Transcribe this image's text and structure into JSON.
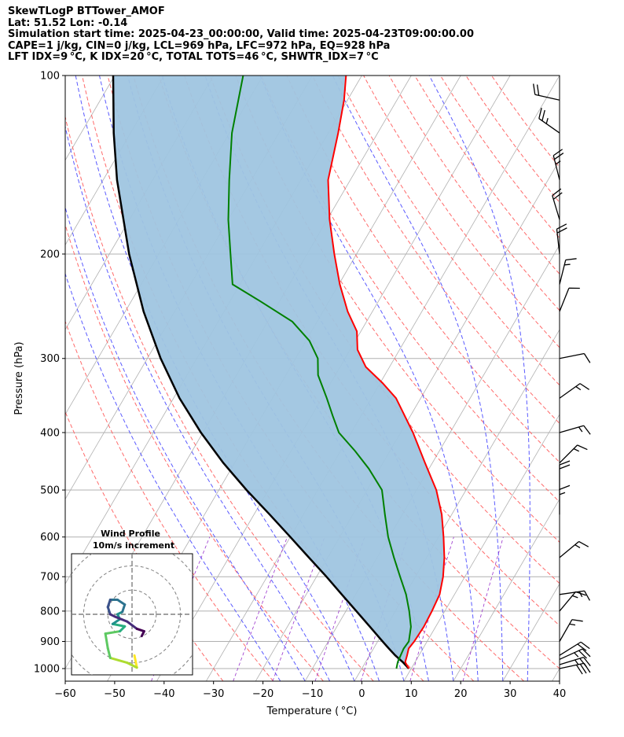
{
  "header": {
    "line1": "SkewTLogP BTTower_AMOF",
    "line2": "Lat: 51.52   Lon: -0.14",
    "line3": "Simulation start time: 2025-04-23_00:00:00, Valid time: 2025-04-23T09:00:00.00",
    "line4": "CAPE=1 j/kg, CIN=0 j/kg, LCL=969 hPa, LFC=972 hPa, EQ=928 hPa",
    "line5": "LFT IDX=9 °C, K IDX=20 °C, TOTAL TOTS=46 °C, SHWTR_IDX=7 °C"
  },
  "chart_data": {
    "type": "skewt",
    "xlabel": "Temperature ( °C)",
    "ylabel": "Pressure (hPa)",
    "xlim": [
      -60,
      40
    ],
    "ylim": [
      1050,
      100
    ],
    "xticks": [
      -60,
      -50,
      -40,
      -30,
      -20,
      -10,
      0,
      10,
      20,
      30,
      40
    ],
    "xtick_labels": [
      "−60",
      "−50",
      "−40",
      "−30",
      "−20",
      "−10",
      "0",
      "10",
      "20",
      "30",
      "40"
    ],
    "yticks": [
      1000,
      900,
      800,
      700,
      600,
      500,
      400,
      300,
      200,
      100
    ],
    "ytick_labels": [
      "1000",
      "900",
      "800",
      "700",
      "600",
      "500",
      "400",
      "300",
      "200",
      "100"
    ],
    "grid": true,
    "temperature": {
      "color": "#ff0000",
      "points": [
        [
          1000,
          9.5
        ],
        [
          975,
          8.0
        ],
        [
          950,
          7.6
        ],
        [
          925,
          7.1
        ],
        [
          900,
          7.4
        ],
        [
          850,
          7.6
        ],
        [
          800,
          7.4
        ],
        [
          750,
          7.0
        ],
        [
          700,
          5.6
        ],
        [
          650,
          3.6
        ],
        [
          600,
          1.0
        ],
        [
          550,
          -2.0
        ],
        [
          500,
          -6.0
        ],
        [
          450,
          -11.5
        ],
        [
          400,
          -17.5
        ],
        [
          350,
          -25.0
        ],
        [
          330,
          -29.5
        ],
        [
          310,
          -34.8
        ],
        [
          290,
          -38.5
        ],
        [
          270,
          -40.8
        ],
        [
          250,
          -45.0
        ],
        [
          225,
          -49.8
        ],
        [
          200,
          -54.5
        ],
        [
          175,
          -59.5
        ],
        [
          150,
          -64.5
        ],
        [
          125,
          -68.0
        ],
        [
          110,
          -70.7
        ],
        [
          100,
          -73.2
        ]
      ]
    },
    "dewpoint": {
      "color": "#008000",
      "points": [
        [
          1000,
          7.0
        ],
        [
          975,
          6.5
        ],
        [
          950,
          6.3
        ],
        [
          925,
          6.1
        ],
        [
          900,
          6.3
        ],
        [
          850,
          5.0
        ],
        [
          800,
          2.8
        ],
        [
          750,
          0.2
        ],
        [
          700,
          -3.1
        ],
        [
          650,
          -6.6
        ],
        [
          600,
          -10.2
        ],
        [
          550,
          -13.5
        ],
        [
          500,
          -17.0
        ],
        [
          460,
          -22.2
        ],
        [
          430,
          -27.0
        ],
        [
          400,
          -32.5
        ],
        [
          375,
          -35.7
        ],
        [
          350,
          -39.0
        ],
        [
          320,
          -43.5
        ],
        [
          300,
          -45.5
        ],
        [
          280,
          -49.3
        ],
        [
          260,
          -55.0
        ],
        [
          240,
          -64.0
        ],
        [
          225,
          -71.5
        ],
        [
          200,
          -75.5
        ],
        [
          175,
          -80.0
        ],
        [
          150,
          -84.5
        ],
        [
          125,
          -89.5
        ],
        [
          100,
          -94.0
        ]
      ]
    },
    "parcel": {
      "color": "#000000",
      "points": [
        [
          1000,
          9.5
        ],
        [
          975,
          7.5
        ],
        [
          950,
          5.2
        ],
        [
          925,
          3.1
        ],
        [
          900,
          1.0
        ],
        [
          850,
          -3.3
        ],
        [
          800,
          -7.9
        ],
        [
          750,
          -12.8
        ],
        [
          700,
          -18.0
        ],
        [
          650,
          -23.8
        ],
        [
          600,
          -30.0
        ],
        [
          550,
          -36.8
        ],
        [
          500,
          -44.4
        ],
        [
          450,
          -52.3
        ],
        [
          400,
          -60.4
        ],
        [
          350,
          -68.8
        ],
        [
          300,
          -77.3
        ],
        [
          250,
          -86.3
        ],
        [
          200,
          -96.0
        ],
        [
          150,
          -107.2
        ],
        [
          125,
          -113.4
        ],
        [
          100,
          -120.3
        ]
      ]
    },
    "cape_fill_color": "#9fc5e0",
    "isotherm_color": "#b0b0b0",
    "dry_adiabat_color": "#ff6a6a",
    "moist_adiabat_color": "#5a5aff",
    "mixing_ratio_color": "#9932cc",
    "wind_barbs": [
      {
        "p": 1000,
        "u": -14,
        "v": -3
      },
      {
        "p": 985,
        "u": -13,
        "v": -4
      },
      {
        "p": 965,
        "u": -11,
        "v": -5
      },
      {
        "p": 950,
        "u": -8,
        "v": -5
      },
      {
        "p": 900,
        "u": -4,
        "v": -7
      },
      {
        "p": 800,
        "u": -5,
        "v": -6
      },
      {
        "p": 750,
        "u": -7,
        "v": -1
      },
      {
        "p": 650,
        "u": -6,
        "v": -5
      },
      {
        "p": 550,
        "u": 0,
        "v": -9
      },
      {
        "p": 500,
        "u": 0,
        "v": -10
      },
      {
        "p": 450,
        "u": -6,
        "v": -6
      },
      {
        "p": 400,
        "u": -7,
        "v": -2
      },
      {
        "p": 350,
        "u": -7,
        "v": -5
      },
      {
        "p": 300,
        "u": -5,
        "v": -1
      },
      {
        "p": 250,
        "u": -2,
        "v": -5
      },
      {
        "p": 225,
        "u": -2,
        "v": -8
      },
      {
        "p": 200,
        "u": 1,
        "v": -9
      },
      {
        "p": 175,
        "u": 3,
        "v": -10
      },
      {
        "p": 150,
        "u": 3,
        "v": -12
      },
      {
        "p": 125,
        "u": 10,
        "v": -7
      },
      {
        "p": 110,
        "u": 9,
        "v": -2
      }
    ],
    "hodograph": {
      "title": "Wind Profile",
      "subtitle": "10m/s increment",
      "rings": [
        10,
        20,
        30
      ],
      "range": [
        -25,
        25
      ],
      "colormap": "viridis",
      "points": [
        [
          1,
          -17
        ],
        [
          2,
          -22
        ],
        [
          -2,
          -20
        ],
        [
          -9,
          -18
        ],
        [
          -10,
          -14
        ],
        [
          -11,
          -8
        ],
        [
          -5,
          -7
        ],
        [
          -3,
          -5
        ],
        [
          -8,
          -4
        ],
        [
          -5,
          -2
        ],
        [
          -6,
          0
        ],
        [
          -4,
          1
        ],
        [
          -3,
          4
        ],
        [
          -6,
          6
        ],
        [
          -9,
          6
        ],
        [
          -10,
          3
        ],
        [
          -9,
          0
        ],
        [
          -7,
          -1
        ],
        [
          -2,
          -3
        ],
        [
          2,
          -6
        ],
        [
          5,
          -7
        ],
        [
          4,
          -9
        ]
      ]
    }
  }
}
